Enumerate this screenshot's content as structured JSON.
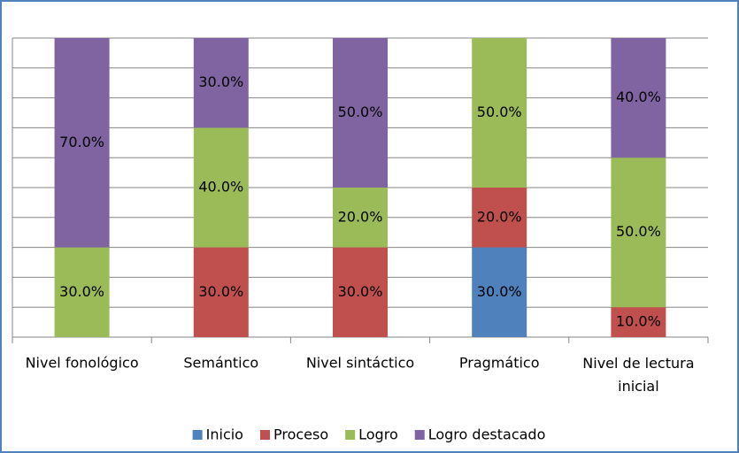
{
  "chart_data": {
    "type": "stacked_bar",
    "categories": [
      "Nivel fonológico",
      "Semántico",
      "Nivel sintáctico",
      "Pragmático",
      "Nivel de lectura inicial"
    ],
    "series": [
      {
        "name": "Inicio",
        "color": "#4f81bd",
        "values": [
          0,
          0,
          0,
          30,
          0
        ],
        "value_labels": [
          null,
          null,
          null,
          "30.0%",
          null
        ]
      },
      {
        "name": "Proceso",
        "color": "#c0504d",
        "values": [
          0,
          30,
          30,
          20,
          10
        ],
        "value_labels": [
          null,
          "30.0%",
          "30.0%",
          "20.0%",
          "10.0%"
        ]
      },
      {
        "name": "Logro",
        "color": "#9bbb59",
        "values": [
          30,
          40,
          20,
          50,
          50
        ],
        "value_labels": [
          "30.0%",
          "40.0%",
          "20.0%",
          "50.0%",
          "50.0%"
        ]
      },
      {
        "name": "Logro destacado",
        "color": "#8064a2",
        "values": [
          70,
          30,
          50,
          0,
          40
        ],
        "value_labels": [
          "70.0%",
          "30.0%",
          "50.0%",
          null,
          "40.0%"
        ]
      }
    ],
    "ylim": [
      0,
      100
    ],
    "yticks": [
      0,
      10,
      20,
      30,
      40,
      50,
      60,
      70,
      80,
      90,
      100
    ],
    "grid": true,
    "legend": "bottom"
  }
}
